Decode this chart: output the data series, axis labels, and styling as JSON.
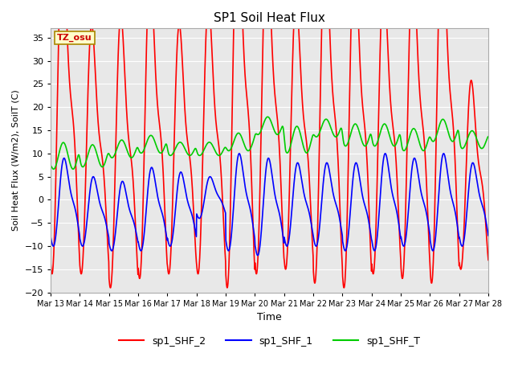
{
  "title": "SP1 Soil Heat Flux",
  "xlabel": "Time",
  "ylabel": "Soil Heat Flux (W/m2), SoilT (C)",
  "ylim": [
    -20,
    37
  ],
  "yticks": [
    -20,
    -15,
    -10,
    -5,
    0,
    5,
    10,
    15,
    20,
    25,
    30,
    35
  ],
  "xlim": [
    0,
    15
  ],
  "xtick_labels": [
    "Mar 13",
    "Mar 14",
    "Mar 15",
    "Mar 16",
    "Mar 17",
    "Mar 18",
    "Mar 19",
    "Mar 20",
    "Mar 21",
    "Mar 22",
    "Mar 23",
    "Mar 24",
    "Mar 25",
    "Mar 26",
    "Mar 27",
    "Mar 28"
  ],
  "fig_bg_color": "#ffffff",
  "plot_bg_color": "#e8e8e8",
  "grid_color": "#ffffff",
  "annotation_text": "TZ_osu",
  "annotation_bg": "#ffffcc",
  "annotation_border": "#aa8800",
  "annotation_color": "#cc0000",
  "series": {
    "sp1_SHF_2": {
      "color": "#ff0000",
      "linewidth": 1.2
    },
    "sp1_SHF_1": {
      "color": "#0000ff",
      "linewidth": 1.2
    },
    "sp1_SHF_T": {
      "color": "#00cc00",
      "linewidth": 1.2
    }
  },
  "legend_labels": [
    "sp1_SHF_2",
    "sp1_SHF_1",
    "sp1_SHF_T"
  ],
  "legend_colors": [
    "#ff0000",
    "#0000ff",
    "#00cc00"
  ]
}
